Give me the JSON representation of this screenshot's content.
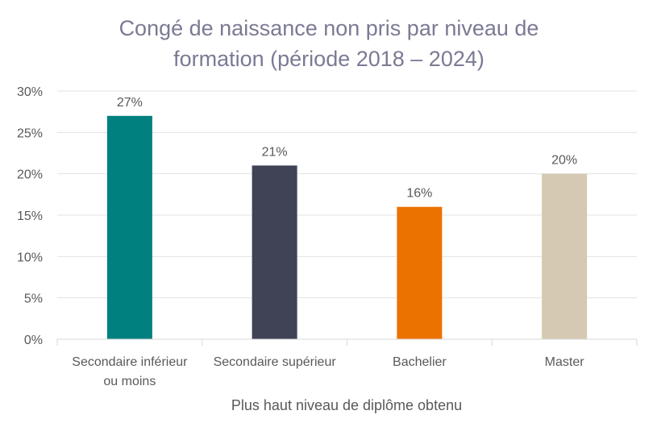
{
  "chart_data": {
    "type": "bar",
    "title_lines": [
      "Congé de naissance non pris par niveau de",
      "formation (période 2018 – 2024)"
    ],
    "categories": [
      [
        "Secondaire inférieur",
        "ou moins"
      ],
      [
        "Secondaire supérieur"
      ],
      [
        "Bachelier"
      ],
      [
        "Master"
      ]
    ],
    "values": [
      27,
      21,
      16,
      20
    ],
    "value_labels": [
      "27%",
      "21%",
      "16%",
      "20%"
    ],
    "colors": [
      "#00807f",
      "#404356",
      "#ec7200",
      "#d5c9b3"
    ],
    "xlabel": "Plus haut niveau de diplôme obtenu",
    "ylabel": "",
    "ylim": [
      0,
      30
    ],
    "yticks": [
      0,
      5,
      10,
      15,
      20,
      25,
      30
    ],
    "ytick_labels": [
      "0%",
      "5%",
      "10%",
      "15%",
      "20%",
      "25%",
      "30%"
    ],
    "grid": true,
    "legend": "none"
  }
}
